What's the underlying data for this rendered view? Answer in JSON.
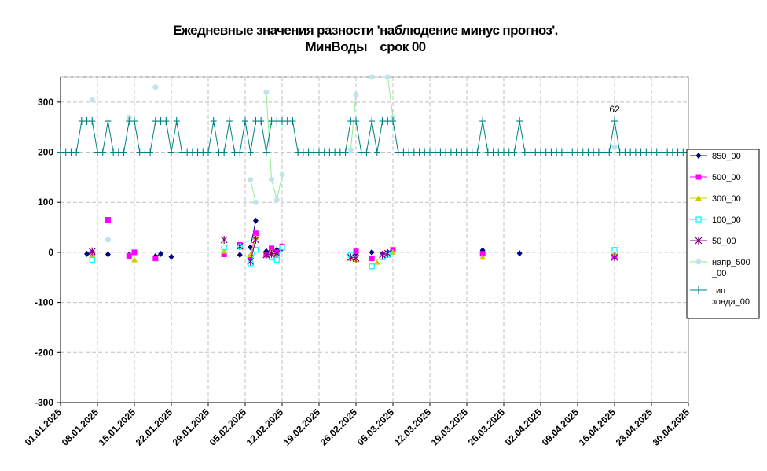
{
  "chart_data": {
    "type": "line",
    "title_lines": [
      "Ежедневные значения разности 'наблюдение минус прогноз'.",
      "МинВоды    срок 00"
    ],
    "ylim": [
      -300,
      350
    ],
    "yticks": [
      -300,
      -200,
      -100,
      0,
      100,
      200,
      300
    ],
    "xlim": [
      "2025-01-01",
      "2025-04-30"
    ],
    "xticks": [
      "01.01.2025",
      "08.01.2025",
      "15.01.2025",
      "22.01.2025",
      "29.01.2025",
      "05.02.2025",
      "12.02.2025",
      "19.02.2025",
      "26.02.2025",
      "05.03.2025",
      "12.03.2025",
      "19.03.2025",
      "26.03.2025",
      "02.04.2025",
      "09.04.2025",
      "16.04.2025",
      "23.04.2025",
      "30.04.2025"
    ],
    "grid": true,
    "legend_position": "right",
    "annotation": {
      "text": "62",
      "x": "2025-04-16",
      "y": 262
    },
    "series": [
      {
        "name": "850_00",
        "color": "#000080",
        "marker": "diamond",
        "points": [
          [
            "2025-01-06",
            -3
          ],
          [
            "2025-01-07",
            0
          ],
          [
            "2025-01-10",
            -4
          ],
          [
            "2025-01-14",
            -5
          ],
          [
            "2025-01-19",
            -8
          ],
          [
            "2025-01-20",
            -3
          ],
          [
            "2025-01-22",
            -9
          ],
          [
            "2025-02-04",
            -5
          ],
          [
            "2025-02-06",
            10
          ],
          [
            "2025-02-07",
            63
          ],
          [
            "2025-02-09",
            2
          ],
          [
            "2025-02-11",
            5
          ],
          [
            "2025-02-12",
            8
          ],
          [
            "2025-02-25",
            -5
          ],
          [
            "2025-02-26",
            -2
          ],
          [
            "2025-03-01",
            0
          ],
          [
            "2025-03-03",
            -3
          ],
          [
            "2025-03-04",
            0
          ],
          [
            "2025-03-22",
            4
          ],
          [
            "2025-03-29",
            -2
          ],
          [
            "2025-04-16",
            -5
          ]
        ]
      },
      {
        "name": "500_00",
        "color": "#ff00ff",
        "marker": "square",
        "points": [
          [
            "2025-01-07",
            -3
          ],
          [
            "2025-01-10",
            65
          ],
          [
            "2025-01-14",
            -7
          ],
          [
            "2025-01-15",
            0
          ],
          [
            "2025-01-19",
            -12
          ],
          [
            "2025-02-01",
            -4
          ],
          [
            "2025-02-04",
            15
          ],
          [
            "2025-02-06",
            -10
          ],
          [
            "2025-02-07",
            38
          ],
          [
            "2025-02-09",
            -5
          ],
          [
            "2025-02-10",
            8
          ],
          [
            "2025-02-11",
            0
          ],
          [
            "2025-02-12",
            12
          ],
          [
            "2025-02-25",
            -5
          ],
          [
            "2025-02-26",
            2
          ],
          [
            "2025-03-01",
            -12
          ],
          [
            "2025-03-03",
            -8
          ],
          [
            "2025-03-04",
            -3
          ],
          [
            "2025-03-05",
            5
          ],
          [
            "2025-03-22",
            -3
          ],
          [
            "2025-04-16",
            -8
          ]
        ]
      },
      {
        "name": "300_00",
        "color": "#cccc00",
        "marker": "triangle",
        "points": [
          [
            "2025-01-07",
            -5
          ],
          [
            "2025-01-15",
            -15
          ],
          [
            "2025-02-01",
            2
          ],
          [
            "2025-02-04",
            10
          ],
          [
            "2025-02-06",
            -5
          ],
          [
            "2025-02-07",
            30
          ],
          [
            "2025-02-10",
            0
          ],
          [
            "2025-02-11",
            -8
          ],
          [
            "2025-02-25",
            -12
          ],
          [
            "2025-02-26",
            -15
          ],
          [
            "2025-03-02",
            -20
          ],
          [
            "2025-03-04",
            -5
          ],
          [
            "2025-03-05",
            0
          ],
          [
            "2025-03-22",
            -10
          ],
          [
            "2025-04-16",
            -2
          ]
        ]
      },
      {
        "name": "100_00",
        "color": "#00ffff",
        "marker": "hollow-square",
        "points": [
          [
            "2025-01-07",
            -15
          ],
          [
            "2025-02-01",
            10
          ],
          [
            "2025-02-04",
            12
          ],
          [
            "2025-02-06",
            -22
          ],
          [
            "2025-02-07",
            5
          ],
          [
            "2025-02-10",
            -10
          ],
          [
            "2025-02-11",
            -15
          ],
          [
            "2025-02-12",
            10
          ],
          [
            "2025-02-25",
            -5
          ],
          [
            "2025-03-01",
            -28
          ],
          [
            "2025-03-03",
            -10
          ],
          [
            "2025-03-04",
            -5
          ],
          [
            "2025-04-16",
            5
          ]
        ]
      },
      {
        "name": "50_00",
        "color": "#800080",
        "marker": "star",
        "points": [
          [
            "2025-01-07",
            2
          ],
          [
            "2025-02-01",
            25
          ],
          [
            "2025-02-04",
            12
          ],
          [
            "2025-02-06",
            -18
          ],
          [
            "2025-02-07",
            25
          ],
          [
            "2025-02-09",
            -5
          ],
          [
            "2025-02-10",
            -3
          ],
          [
            "2025-02-11",
            -2
          ],
          [
            "2025-02-25",
            -10
          ],
          [
            "2025-02-26",
            -12
          ],
          [
            "2025-03-03",
            -5
          ],
          [
            "2025-03-04",
            -2
          ],
          [
            "2025-04-16",
            -10
          ]
        ]
      },
      {
        "name": "напр_500_00",
        "color": "#c0e4ec",
        "marker": "circle",
        "line_color": "#90ee90",
        "points": [
          [
            "2025-01-07",
            305
          ],
          [
            "2025-01-10",
            25
          ],
          [
            "2025-01-14",
            270
          ],
          [
            "2025-01-19",
            330
          ],
          [
            "2025-02-06",
            145
          ],
          [
            "2025-02-07",
            100
          ],
          [
            "2025-02-09",
            320
          ],
          [
            "2025-02-10",
            145
          ],
          [
            "2025-02-11",
            105
          ],
          [
            "2025-02-12",
            155
          ],
          [
            "2025-02-25",
            205
          ],
          [
            "2025-02-26",
            315
          ],
          [
            "2025-03-01",
            350
          ],
          [
            "2025-03-04",
            350
          ],
          [
            "2025-03-05",
            270
          ],
          [
            "2025-04-16",
            210
          ]
        ]
      },
      {
        "name": "тип зонда_00",
        "color": "#008080",
        "marker": "plus",
        "low": 200,
        "high": 262,
        "high_dates": [
          "2025-01-05",
          "2025-01-06",
          "2025-01-07",
          "2025-01-10",
          "2025-01-14",
          "2025-01-15",
          "2025-01-19",
          "2025-01-20",
          "2025-01-21",
          "2025-01-23",
          "2025-01-30",
          "2025-02-02",
          "2025-02-05",
          "2025-02-07",
          "2025-02-08",
          "2025-02-10",
          "2025-02-11",
          "2025-02-12",
          "2025-02-13",
          "2025-02-14",
          "2025-02-25",
          "2025-02-26",
          "2025-03-01",
          "2025-03-03",
          "2025-03-04",
          "2025-03-05",
          "2025-03-22",
          "2025-03-29",
          "2025-04-16"
        ]
      }
    ]
  }
}
